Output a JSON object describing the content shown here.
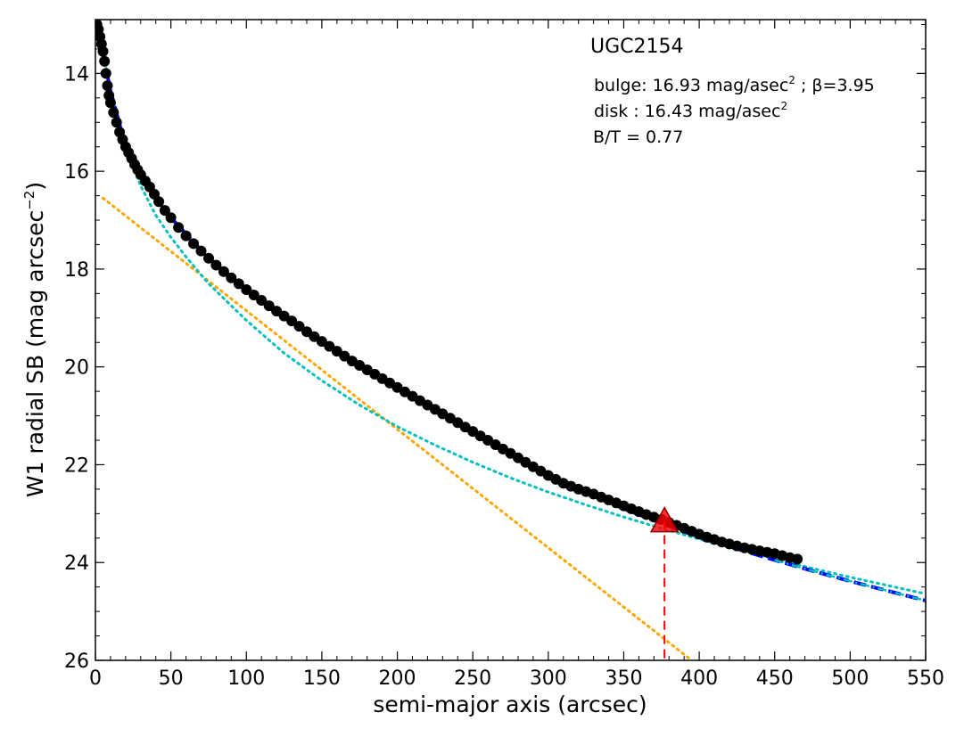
{
  "chart_data": {
    "type": "scatter",
    "title": "UGC2154",
    "xlabel": "semi-major axis (arcsec)",
    "ylabel_main": "W1 radial SB (mag arcsec",
    "ylabel_sup": "−2",
    "ylabel_close": ")",
    "xlim": [
      0,
      550
    ],
    "ylim": [
      26,
      12.9
    ],
    "xticks": [
      0,
      50,
      100,
      150,
      200,
      250,
      300,
      350,
      400,
      450,
      500,
      550
    ],
    "yticks": [
      14,
      16,
      18,
      20,
      22,
      24,
      26
    ],
    "annotations": {
      "bulge_text": "bulge: 16.93 mag/asec",
      "bulge_sup": "2",
      "bulge_beta": " ; β=3.95",
      "disk_text": "disk  : 16.43 mag/asec",
      "disk_sup": "2",
      "bt_text": "B/T = 0.77"
    },
    "colors": {
      "data_points": "#000000",
      "total_fit": "#0000ff",
      "total_fit_outer": "#00bfbf",
      "bulge_fit": "#00bfbf",
      "disk_fit": "#ffa500",
      "marker": "#ff0000"
    },
    "series": [
      {
        "kind": "observed_profile",
        "points": [
          [
            1,
            13.0
          ],
          [
            2,
            13.1
          ],
          [
            3,
            13.25
          ],
          [
            4,
            13.4
          ],
          [
            5,
            13.55
          ],
          [
            6,
            13.75
          ],
          [
            7,
            14.0
          ],
          [
            8,
            14.25
          ],
          [
            9,
            14.45
          ],
          [
            10,
            14.6
          ],
          [
            12,
            14.8
          ],
          [
            14,
            15.0
          ],
          [
            16,
            15.2
          ],
          [
            18,
            15.35
          ],
          [
            20,
            15.5
          ],
          [
            22,
            15.62
          ],
          [
            24,
            15.74
          ],
          [
            26,
            15.86
          ],
          [
            28,
            15.97
          ],
          [
            30,
            16.07
          ],
          [
            33,
            16.2
          ],
          [
            36,
            16.32
          ],
          [
            39,
            16.47
          ],
          [
            42,
            16.62
          ],
          [
            46,
            16.8
          ],
          [
            50,
            16.95
          ],
          [
            55,
            17.15
          ],
          [
            60,
            17.32
          ],
          [
            65,
            17.48
          ],
          [
            70,
            17.63
          ],
          [
            75,
            17.78
          ],
          [
            80,
            17.92
          ],
          [
            85,
            18.05
          ],
          [
            90,
            18.18
          ],
          [
            95,
            18.3
          ],
          [
            100,
            18.42
          ],
          [
            105,
            18.53
          ],
          [
            110,
            18.64
          ],
          [
            115,
            18.75
          ],
          [
            120,
            18.86
          ],
          [
            125,
            18.96
          ],
          [
            130,
            19.06
          ],
          [
            135,
            19.17
          ],
          [
            140,
            19.28
          ],
          [
            145,
            19.38
          ],
          [
            150,
            19.48
          ],
          [
            155,
            19.58
          ],
          [
            160,
            19.68
          ],
          [
            165,
            19.78
          ],
          [
            170,
            19.88
          ],
          [
            175,
            19.97
          ],
          [
            180,
            20.06
          ],
          [
            185,
            20.15
          ],
          [
            190,
            20.24
          ],
          [
            195,
            20.33
          ],
          [
            200,
            20.42
          ],
          [
            205,
            20.51
          ],
          [
            210,
            20.6
          ],
          [
            215,
            20.69
          ],
          [
            220,
            20.78
          ],
          [
            225,
            20.87
          ],
          [
            230,
            20.96
          ],
          [
            235,
            21.05
          ],
          [
            240,
            21.14
          ],
          [
            245,
            21.23
          ],
          [
            250,
            21.32
          ],
          [
            255,
            21.41
          ],
          [
            260,
            21.5
          ],
          [
            265,
            21.59
          ],
          [
            270,
            21.68
          ],
          [
            275,
            21.77
          ],
          [
            280,
            21.86
          ],
          [
            285,
            21.95
          ],
          [
            290,
            22.04
          ],
          [
            295,
            22.13
          ],
          [
            300,
            22.22
          ],
          [
            305,
            22.3
          ],
          [
            310,
            22.38
          ],
          [
            315,
            22.44
          ],
          [
            320,
            22.5
          ],
          [
            325,
            22.55
          ],
          [
            330,
            22.6
          ],
          [
            335,
            22.66
          ],
          [
            340,
            22.72
          ],
          [
            345,
            22.78
          ],
          [
            350,
            22.84
          ],
          [
            355,
            22.9
          ],
          [
            360,
            22.96
          ],
          [
            365,
            23.02
          ],
          [
            370,
            23.07
          ],
          [
            375,
            23.12
          ],
          [
            380,
            23.18
          ],
          [
            385,
            23.24
          ],
          [
            390,
            23.3
          ],
          [
            395,
            23.36
          ],
          [
            400,
            23.42
          ],
          [
            405,
            23.48
          ],
          [
            410,
            23.53
          ],
          [
            415,
            23.58
          ],
          [
            420,
            23.62
          ],
          [
            425,
            23.66
          ],
          [
            430,
            23.7
          ],
          [
            435,
            23.73
          ],
          [
            440,
            23.76
          ],
          [
            445,
            23.79
          ],
          [
            450,
            23.82
          ],
          [
            455,
            23.86
          ],
          [
            460,
            23.9
          ],
          [
            465,
            23.93
          ]
        ]
      },
      {
        "kind": "total_fit",
        "points": [
          [
            0,
            12.9
          ],
          [
            5,
            13.6
          ],
          [
            10,
            14.35
          ],
          [
            20,
            15.5
          ],
          [
            30,
            16.1
          ],
          [
            40,
            16.55
          ],
          [
            50,
            16.95
          ],
          [
            75,
            17.78
          ],
          [
            100,
            18.42
          ],
          [
            125,
            18.96
          ],
          [
            150,
            19.48
          ],
          [
            175,
            19.97
          ],
          [
            200,
            20.42
          ],
          [
            225,
            20.87
          ],
          [
            250,
            21.32
          ],
          [
            275,
            21.77
          ],
          [
            300,
            22.22
          ],
          [
            325,
            22.58
          ],
          [
            350,
            22.9
          ],
          [
            375,
            23.2
          ],
          [
            400,
            23.48
          ],
          [
            425,
            23.72
          ],
          [
            450,
            23.95
          ],
          [
            475,
            24.17
          ],
          [
            500,
            24.38
          ],
          [
            525,
            24.58
          ],
          [
            550,
            24.78
          ]
        ]
      },
      {
        "kind": "bulge_fit",
        "points": [
          [
            0,
            12.9
          ],
          [
            5,
            13.6
          ],
          [
            10,
            14.35
          ],
          [
            20,
            15.55
          ],
          [
            30,
            16.3
          ],
          [
            40,
            16.9
          ],
          [
            50,
            17.35
          ],
          [
            60,
            17.75
          ],
          [
            75,
            18.3
          ],
          [
            100,
            19.05
          ],
          [
            125,
            19.72
          ],
          [
            150,
            20.28
          ],
          [
            175,
            20.78
          ],
          [
            200,
            21.22
          ],
          [
            225,
            21.6
          ],
          [
            250,
            21.95
          ],
          [
            275,
            22.27
          ],
          [
            300,
            22.56
          ],
          [
            325,
            22.82
          ],
          [
            350,
            23.07
          ],
          [
            375,
            23.3
          ],
          [
            400,
            23.52
          ],
          [
            425,
            23.73
          ],
          [
            450,
            23.93
          ],
          [
            475,
            24.12
          ],
          [
            500,
            24.3
          ],
          [
            525,
            24.47
          ],
          [
            550,
            24.64
          ]
        ]
      },
      {
        "kind": "disk_fit",
        "points": [
          [
            5,
            16.55
          ],
          [
            395,
            26.0
          ]
        ]
      },
      {
        "kind": "marker",
        "points": [
          [
            377,
            23.15
          ]
        ]
      }
    ]
  }
}
